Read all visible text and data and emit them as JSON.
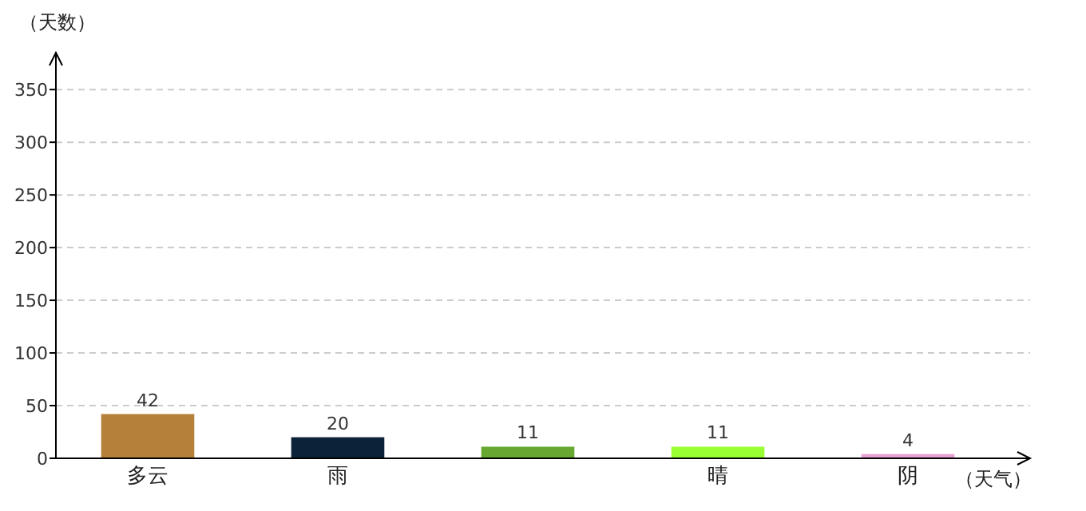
{
  "chart_data": {
    "type": "bar",
    "xlabel": "（天气）",
    "ylabel": "（天数）",
    "categories": [
      "多云",
      "雨",
      null,
      "晴",
      "阴"
    ],
    "values": [
      42,
      20,
      11,
      11,
      4
    ],
    "colors": [
      "#b5803a",
      "#0c2238",
      "#66a832",
      "#99ff33",
      "#e8a0d0"
    ],
    "ylim": [
      0,
      385
    ],
    "yticks": [
      0,
      50,
      100,
      150,
      200,
      250,
      300,
      350
    ],
    "grid": "y",
    "data_labels": true
  }
}
